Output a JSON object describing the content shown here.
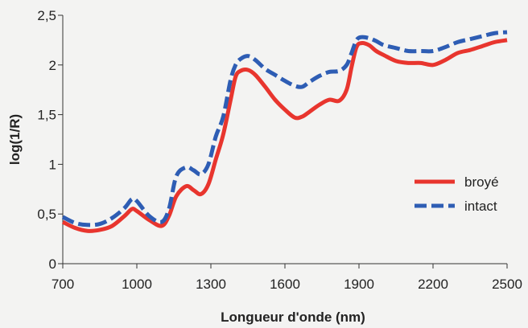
{
  "chart_data": {
    "type": "line",
    "title": "",
    "xlabel": "Longueur d'onde (nm)",
    "ylabel": "log(1/R)",
    "xlim": [
      700,
      2500
    ],
    "ylim": [
      0,
      2.5
    ],
    "x_ticks": [
      700,
      1000,
      1300,
      1600,
      1900,
      2200,
      2500
    ],
    "x_tick_labels": [
      "700",
      "1000",
      "1300",
      "1600",
      "1900",
      "2200",
      "2500"
    ],
    "y_ticks": [
      0,
      0.5,
      1,
      1.5,
      2,
      2.5
    ],
    "y_tick_labels": [
      "0",
      "0,5",
      "1",
      "1,5",
      "2",
      "2,5"
    ],
    "grid": false,
    "legend_position": "right",
    "series": [
      {
        "name": "broyé",
        "color": "#e8352e",
        "dash": "solid",
        "x": [
          700,
          750,
          800,
          850,
          900,
          950,
          980,
          1000,
          1050,
          1100,
          1130,
          1160,
          1200,
          1230,
          1260,
          1290,
          1320,
          1350,
          1380,
          1400,
          1420,
          1450,
          1480,
          1520,
          1560,
          1600,
          1640,
          1670,
          1700,
          1740,
          1780,
          1820,
          1850,
          1870,
          1890,
          1910,
          1940,
          1970,
          2000,
          2050,
          2100,
          2150,
          2200,
          2250,
          2300,
          2350,
          2400,
          2450,
          2500
        ],
        "y": [
          0.42,
          0.36,
          0.33,
          0.34,
          0.38,
          0.48,
          0.55,
          0.53,
          0.44,
          0.38,
          0.48,
          0.68,
          0.78,
          0.74,
          0.7,
          0.8,
          1.05,
          1.3,
          1.65,
          1.88,
          1.94,
          1.95,
          1.9,
          1.78,
          1.65,
          1.55,
          1.47,
          1.48,
          1.53,
          1.6,
          1.65,
          1.64,
          1.75,
          1.98,
          2.18,
          2.22,
          2.2,
          2.14,
          2.1,
          2.04,
          2.02,
          2.02,
          2.0,
          2.05,
          2.12,
          2.15,
          2.19,
          2.23,
          2.25
        ]
      },
      {
        "name": "intact",
        "color": "#2e5db4",
        "dash": "dashed",
        "x": [
          700,
          750,
          800,
          850,
          900,
          950,
          980,
          1000,
          1050,
          1100,
          1130,
          1160,
          1200,
          1230,
          1260,
          1290,
          1320,
          1350,
          1380,
          1400,
          1420,
          1450,
          1480,
          1520,
          1560,
          1600,
          1640,
          1670,
          1700,
          1740,
          1780,
          1820,
          1850,
          1870,
          1890,
          1910,
          1940,
          1970,
          2000,
          2050,
          2100,
          2150,
          2200,
          2250,
          2300,
          2350,
          2400,
          2450,
          2500
        ],
        "y": [
          0.47,
          0.41,
          0.39,
          0.4,
          0.46,
          0.56,
          0.65,
          0.63,
          0.48,
          0.42,
          0.55,
          0.88,
          0.97,
          0.94,
          0.9,
          1.0,
          1.28,
          1.48,
          1.85,
          2.0,
          2.06,
          2.09,
          2.05,
          1.96,
          1.9,
          1.84,
          1.79,
          1.78,
          1.83,
          1.89,
          1.93,
          1.94,
          2.0,
          2.12,
          2.25,
          2.28,
          2.27,
          2.24,
          2.2,
          2.17,
          2.14,
          2.14,
          2.14,
          2.18,
          2.23,
          2.26,
          2.29,
          2.32,
          2.33
        ]
      }
    ]
  }
}
